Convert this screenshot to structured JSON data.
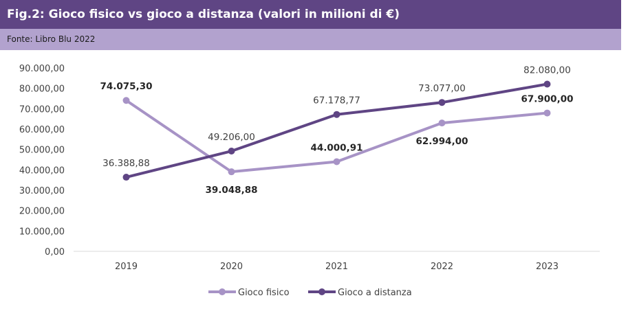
{
  "header": {
    "title": "Fig.2: Gioco fisico vs gioco a distanza (valori in milioni di €)",
    "source": "Fonte: Libro Blu 2022"
  },
  "colors": {
    "title_bg": "#5f4584",
    "source_bg": "#b2a2ce",
    "series_fisico": "#a793c6",
    "series_distanza": "#5f4584"
  },
  "chart_data": {
    "type": "line",
    "categories": [
      "2019",
      "2020",
      "2021",
      "2022",
      "2023"
    ],
    "ylim": [
      0,
      90000
    ],
    "y_ticks": [
      0,
      10000,
      20000,
      30000,
      40000,
      50000,
      60000,
      70000,
      80000,
      90000
    ],
    "y_tick_labels": [
      "0,00",
      "10.000,00",
      "20.000,00",
      "30.000,00",
      "40.000,00",
      "50.000,00",
      "60.000,00",
      "70.000,00",
      "80.000,00",
      "90.000,00"
    ],
    "grid": false,
    "legend_position": "bottom",
    "series": [
      {
        "name": "Gioco fisico",
        "values": [
          74075.3,
          39048.88,
          44000.91,
          62994.0,
          67900.0
        ],
        "labels": [
          "74.075,30",
          "39.048,88",
          "44.000,91",
          "62.994,00",
          "67.900,00"
        ],
        "label_bold": true,
        "label_positions": [
          "above",
          "below",
          "above",
          "below",
          "above"
        ]
      },
      {
        "name": "Gioco a distanza",
        "values": [
          36388.88,
          49206.0,
          67178.77,
          73077.0,
          82080.0
        ],
        "labels": [
          "36.388,88",
          "49.206,00",
          "67.178,77",
          "73.077,00",
          "82.080,00"
        ],
        "label_bold": false,
        "label_positions": [
          "above",
          "above",
          "above",
          "above",
          "above"
        ]
      }
    ]
  }
}
